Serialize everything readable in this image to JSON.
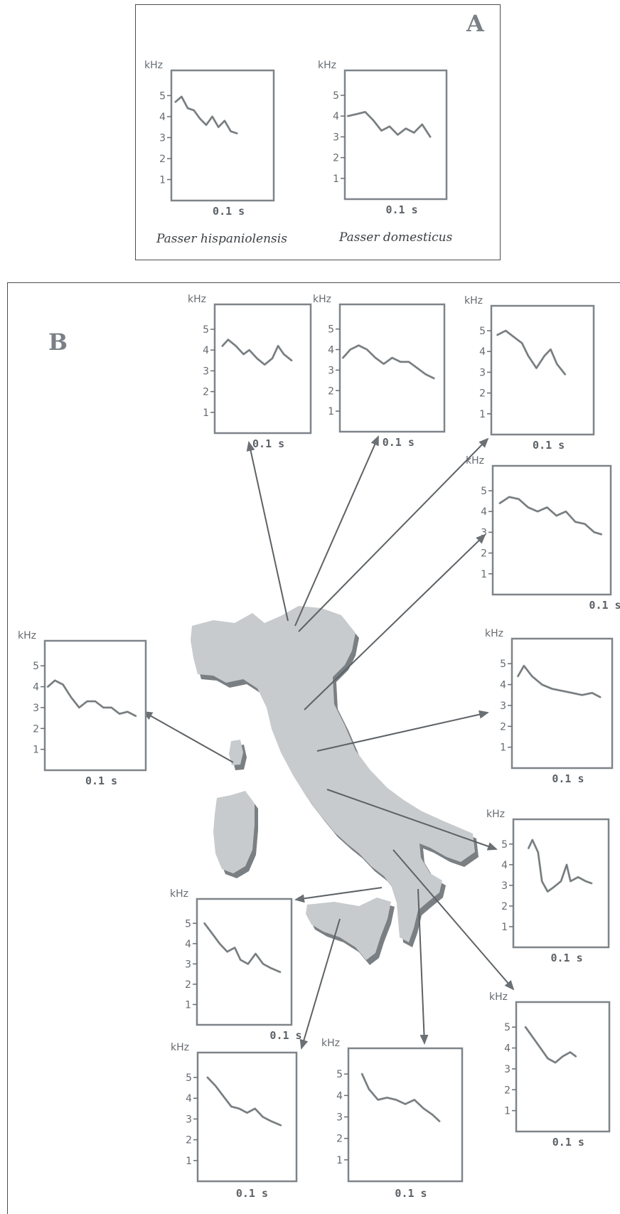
{
  "panel_a": {
    "letter": "A",
    "species_1": "Passer hispaniolensis",
    "species_2": "Passer domesticus"
  },
  "panel_b": {
    "letter": "B"
  },
  "axis": {
    "unit": "kHz",
    "time_label": "0.1 s",
    "ticks": [
      "1",
      "2",
      "3",
      "4",
      "5"
    ]
  },
  "sonagrams": [
    {
      "name": "hispaniolensis",
      "trace": [
        [
          0.04,
          4.7
        ],
        [
          0.1,
          4.95
        ],
        [
          0.16,
          4.4
        ],
        [
          0.22,
          4.3
        ],
        [
          0.28,
          3.9
        ],
        [
          0.34,
          3.6
        ],
        [
          0.4,
          4.0
        ],
        [
          0.46,
          3.5
        ],
        [
          0.52,
          3.8
        ],
        [
          0.58,
          3.3
        ],
        [
          0.64,
          3.2
        ]
      ]
    },
    {
      "name": "domesticus",
      "trace": [
        [
          0.03,
          4.0
        ],
        [
          0.12,
          4.1
        ],
        [
          0.2,
          4.2
        ],
        [
          0.28,
          3.8
        ],
        [
          0.36,
          3.3
        ],
        [
          0.44,
          3.5
        ],
        [
          0.52,
          3.1
        ],
        [
          0.6,
          3.4
        ],
        [
          0.68,
          3.2
        ],
        [
          0.76,
          3.6
        ],
        [
          0.84,
          3.0
        ]
      ]
    },
    {
      "name": "b-top-1",
      "trace": [
        [
          0.08,
          4.2
        ],
        [
          0.14,
          4.5
        ],
        [
          0.22,
          4.2
        ],
        [
          0.3,
          3.8
        ],
        [
          0.36,
          4.0
        ],
        [
          0.44,
          3.6
        ],
        [
          0.52,
          3.3
        ],
        [
          0.6,
          3.6
        ],
        [
          0.66,
          4.2
        ],
        [
          0.72,
          3.8
        ],
        [
          0.8,
          3.5
        ]
      ]
    },
    {
      "name": "b-top-2",
      "trace": [
        [
          0.03,
          3.6
        ],
        [
          0.1,
          4.0
        ],
        [
          0.18,
          4.2
        ],
        [
          0.26,
          4.0
        ],
        [
          0.34,
          3.6
        ],
        [
          0.42,
          3.3
        ],
        [
          0.5,
          3.6
        ],
        [
          0.58,
          3.4
        ],
        [
          0.66,
          3.4
        ],
        [
          0.74,
          3.1
        ],
        [
          0.82,
          2.8
        ],
        [
          0.9,
          2.6
        ]
      ]
    },
    {
      "name": "b-top-3",
      "trace": [
        [
          0.06,
          4.8
        ],
        [
          0.14,
          5.0
        ],
        [
          0.22,
          4.7
        ],
        [
          0.3,
          4.4
        ],
        [
          0.36,
          3.8
        ],
        [
          0.44,
          3.2
        ],
        [
          0.52,
          3.8
        ],
        [
          0.58,
          4.1
        ],
        [
          0.64,
          3.4
        ],
        [
          0.72,
          2.9
        ]
      ]
    },
    {
      "name": "b-right-1",
      "trace": [
        [
          0.06,
          4.4
        ],
        [
          0.14,
          4.7
        ],
        [
          0.22,
          4.6
        ],
        [
          0.3,
          4.2
        ],
        [
          0.38,
          4.0
        ],
        [
          0.46,
          4.2
        ],
        [
          0.54,
          3.8
        ],
        [
          0.62,
          4.0
        ],
        [
          0.7,
          3.5
        ],
        [
          0.78,
          3.4
        ],
        [
          0.86,
          3.0
        ],
        [
          0.92,
          2.9
        ]
      ]
    },
    {
      "name": "b-right-2",
      "trace": [
        [
          0.06,
          4.4
        ],
        [
          0.12,
          4.9
        ],
        [
          0.2,
          4.4
        ],
        [
          0.3,
          4.0
        ],
        [
          0.4,
          3.8
        ],
        [
          0.5,
          3.7
        ],
        [
          0.6,
          3.6
        ],
        [
          0.7,
          3.5
        ],
        [
          0.8,
          3.6
        ],
        [
          0.88,
          3.4
        ]
      ]
    },
    {
      "name": "b-right-3",
      "trace": [
        [
          0.16,
          4.8
        ],
        [
          0.2,
          5.2
        ],
        [
          0.26,
          4.6
        ],
        [
          0.3,
          3.2
        ],
        [
          0.36,
          2.7
        ],
        [
          0.42,
          2.9
        ],
        [
          0.5,
          3.2
        ],
        [
          0.56,
          4.0
        ],
        [
          0.6,
          3.2
        ],
        [
          0.68,
          3.4
        ],
        [
          0.76,
          3.2
        ],
        [
          0.82,
          3.1
        ]
      ]
    },
    {
      "name": "b-right-4",
      "trace": [
        [
          0.1,
          5.0
        ],
        [
          0.18,
          4.5
        ],
        [
          0.26,
          4.0
        ],
        [
          0.34,
          3.5
        ],
        [
          0.42,
          3.3
        ],
        [
          0.5,
          3.6
        ],
        [
          0.58,
          3.8
        ],
        [
          0.64,
          3.6
        ]
      ]
    },
    {
      "name": "b-left",
      "trace": [
        [
          0.03,
          4.0
        ],
        [
          0.1,
          4.3
        ],
        [
          0.18,
          4.1
        ],
        [
          0.26,
          3.5
        ],
        [
          0.34,
          3.0
        ],
        [
          0.42,
          3.3
        ],
        [
          0.5,
          3.3
        ],
        [
          0.58,
          3.0
        ],
        [
          0.66,
          3.0
        ],
        [
          0.74,
          2.7
        ],
        [
          0.82,
          2.8
        ],
        [
          0.9,
          2.6
        ]
      ]
    },
    {
      "name": "b-bottom-left",
      "trace": [
        [
          0.08,
          5.0
        ],
        [
          0.16,
          4.5
        ],
        [
          0.24,
          4.0
        ],
        [
          0.32,
          3.6
        ],
        [
          0.4,
          3.8
        ],
        [
          0.46,
          3.2
        ],
        [
          0.54,
          3.0
        ],
        [
          0.62,
          3.5
        ],
        [
          0.7,
          3.0
        ],
        [
          0.78,
          2.8
        ],
        [
          0.88,
          2.6
        ]
      ]
    },
    {
      "name": "b-bottom-1",
      "trace": [
        [
          0.1,
          5.0
        ],
        [
          0.18,
          4.6
        ],
        [
          0.26,
          4.1
        ],
        [
          0.34,
          3.6
        ],
        [
          0.42,
          3.5
        ],
        [
          0.5,
          3.3
        ],
        [
          0.58,
          3.5
        ],
        [
          0.66,
          3.1
        ],
        [
          0.74,
          2.9
        ],
        [
          0.84,
          2.7
        ]
      ]
    },
    {
      "name": "b-bottom-2",
      "trace": [
        [
          0.12,
          5.0
        ],
        [
          0.18,
          4.3
        ],
        [
          0.26,
          3.8
        ],
        [
          0.34,
          3.9
        ],
        [
          0.42,
          3.8
        ],
        [
          0.5,
          3.6
        ],
        [
          0.58,
          3.8
        ],
        [
          0.66,
          3.4
        ],
        [
          0.74,
          3.1
        ],
        [
          0.8,
          2.8
        ]
      ]
    }
  ]
}
